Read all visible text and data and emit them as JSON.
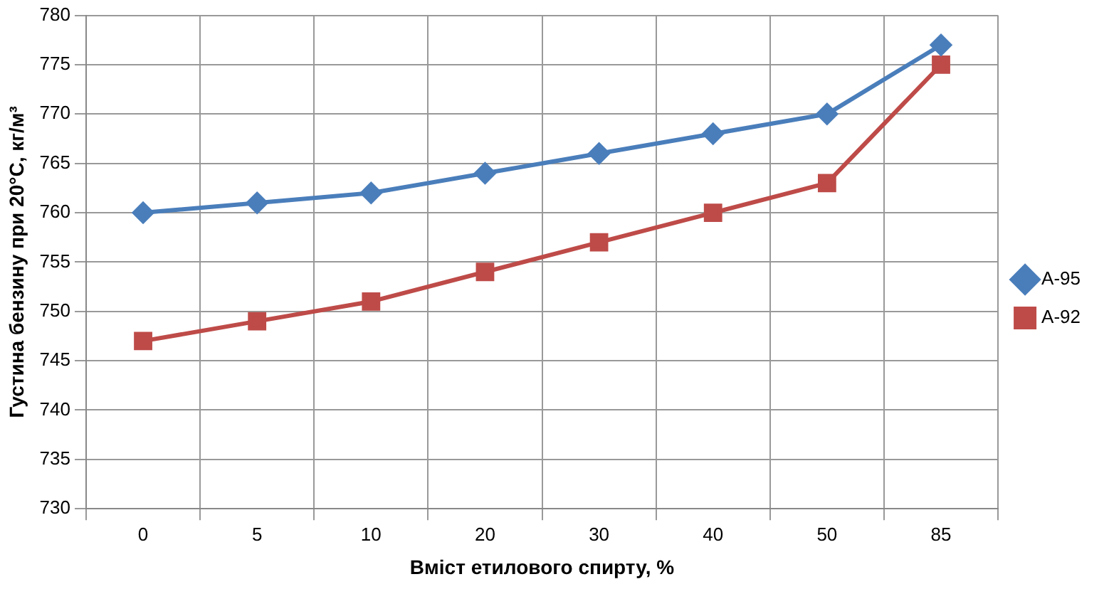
{
  "chart_data": {
    "type": "line",
    "xlabel": "Вміст етилового спирту, %",
    "ylabel": "Густина бензину при 20°С, кг/м³",
    "categories": [
      "0",
      "5",
      "10",
      "20",
      "30",
      "40",
      "50",
      "85"
    ],
    "series": [
      {
        "name": "А-95",
        "color": "#4a7ebb",
        "marker": "diamond",
        "values": [
          760,
          761,
          762,
          764,
          766,
          768,
          770,
          777
        ]
      },
      {
        "name": "А-92",
        "color": "#be4b48",
        "marker": "square",
        "values": [
          747,
          749,
          751,
          754,
          757,
          760,
          763,
          775
        ]
      }
    ],
    "ylim": [
      730,
      780
    ],
    "yticks": [
      730,
      735,
      740,
      745,
      750,
      755,
      760,
      765,
      770,
      775,
      780
    ],
    "grid": true,
    "legend": "right",
    "line_style": "solid"
  }
}
